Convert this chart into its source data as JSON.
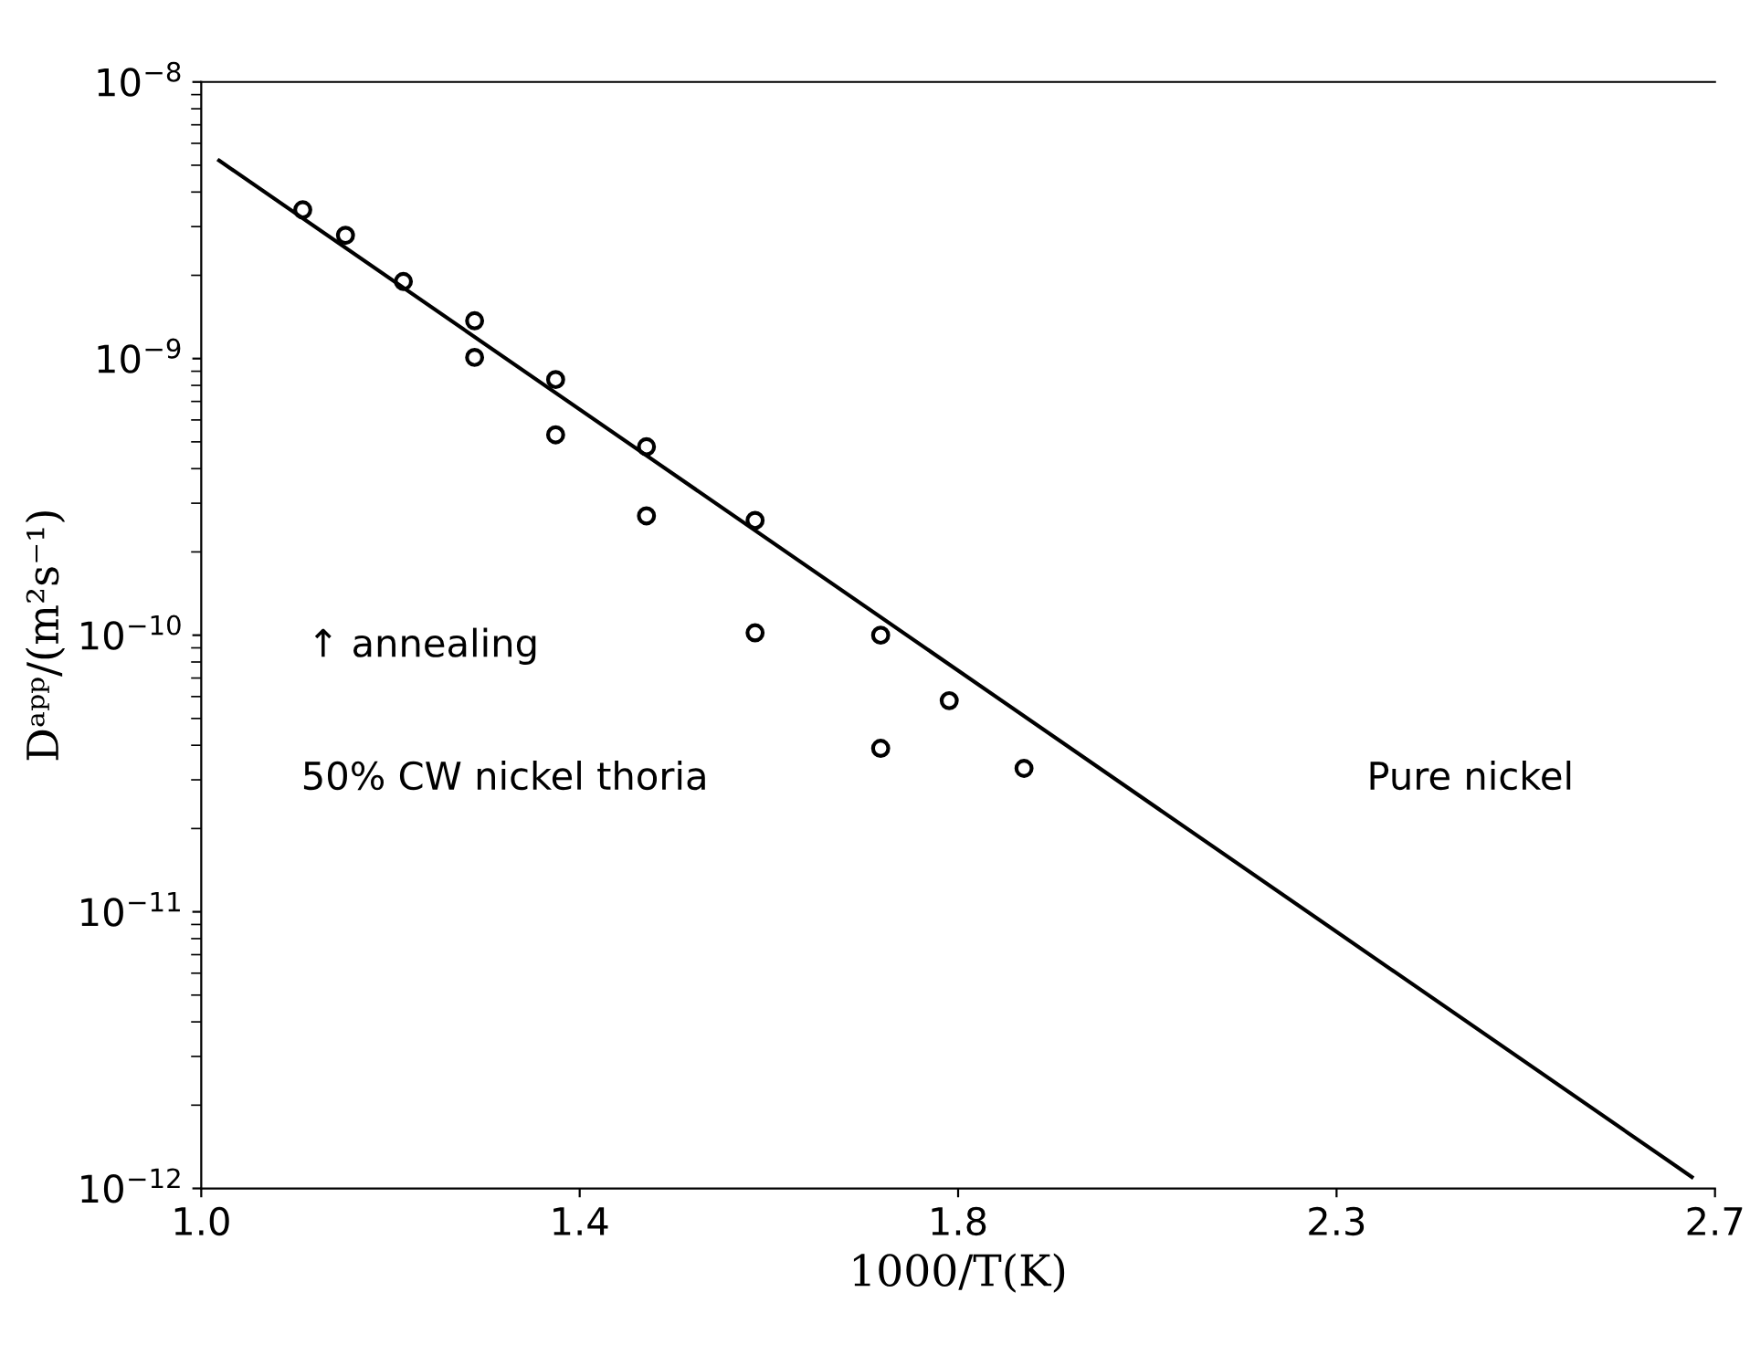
{
  "chart_data": {
    "type": "scatter",
    "xlabel": "1000/T(K)",
    "ylabel": "Dᵃᵖᵖ/(m²s⁻¹)",
    "log": "y",
    "xlim": [
      1.0,
      2.7
    ],
    "ylim": [
      1e-12,
      1e-08
    ],
    "xticks": [
      {
        "value": 1.0,
        "label": "1.0"
      },
      {
        "value": 1.425,
        "label": "1.4"
      },
      {
        "value": 1.85,
        "label": "1.8"
      },
      {
        "value": 2.275,
        "label": "2.3"
      },
      2.7
    ],
    "yticks": [
      {
        "value": 1e-12,
        "label": "10$^{−12}$"
      },
      {
        "value": 1e-11,
        "label": "10$^{−11}$"
      },
      {
        "value": 1e-10,
        "label": "10$^{−10}$"
      },
      {
        "value": 1e-09,
        "label": "10$^{−9}$"
      },
      {
        "value": 1e-08,
        "label": "10$^{−8}$"
      }
    ],
    "grid": false,
    "legend": false,
    "series": [
      {
        "type": "scatter",
        "marker": "circle",
        "color": "#000000",
        "x": [
          1.114,
          1.162,
          1.227,
          1.307,
          1.307,
          1.398,
          1.398,
          1.5,
          1.5,
          1.622,
          1.622,
          1.763,
          1.763,
          1.84,
          1.924
        ],
        "values": [
          3.45e-09,
          2.79e-09,
          1.9e-09,
          1.37e-09,
          1.01e-09,
          8.4e-10,
          5.3e-10,
          4.8e-10,
          2.7e-10,
          2.6e-10,
          1.02e-10,
          1e-10,
          3.9e-11,
          5.8e-11,
          3.3e-11
        ]
      },
      {
        "type": "line",
        "marker": "none",
        "line_style": "solid",
        "color": "#000000",
        "x": [
          1.02,
          2.674
        ],
        "values": [
          5.2e-09,
          1.1e-12
        ]
      }
    ],
    "annotations": [
      "↑ annealing",
      "50% CW nickel thoria",
      "Pure nickel"
    ]
  }
}
